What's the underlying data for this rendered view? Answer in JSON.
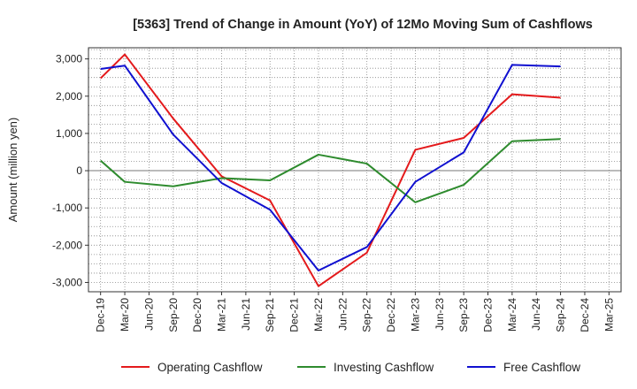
{
  "chart_data": {
    "type": "line",
    "title": "[5363]  Trend of Change in Amount (YoY) of 12Mo Moving Sum of Cashflows",
    "xlabel": "",
    "ylabel": "Amount (million yen)",
    "ylim": [
      -3250,
      3300
    ],
    "yticks": [
      -3000,
      -2000,
      -1000,
      0,
      1000,
      2000,
      3000
    ],
    "ytick_labels": [
      "-3,000",
      "-2,000",
      "-1,000",
      "0",
      "1,000",
      "2,000",
      "3,000"
    ],
    "categories": [
      "Dec-19",
      "Mar-20",
      "Jun-20",
      "Sep-20",
      "Dec-20",
      "Mar-21",
      "Jun-21",
      "Sep-21",
      "Dec-21",
      "Mar-22",
      "Jun-22",
      "Sep-22",
      "Dec-22",
      "Mar-23",
      "Jun-23",
      "Sep-23",
      "Dec-23",
      "Mar-24",
      "Jun-24",
      "Sep-24",
      "Dec-24",
      "Mar-25"
    ],
    "grid": true,
    "legend_position": "bottom",
    "series": [
      {
        "name": "Operating Cashflow",
        "color": "#e41a1c",
        "values": [
          2480,
          3120,
          null,
          1400,
          null,
          -150,
          null,
          -800,
          null,
          -3100,
          null,
          -2200,
          null,
          560,
          null,
          880,
          null,
          2050,
          null,
          1960,
          null,
          null
        ]
      },
      {
        "name": "Investing Cashflow",
        "color": "#2e8b2e",
        "values": [
          270,
          -300,
          null,
          -420,
          null,
          -200,
          null,
          -260,
          null,
          430,
          null,
          190,
          null,
          -850,
          null,
          -380,
          null,
          790,
          null,
          850,
          null,
          null
        ]
      },
      {
        "name": "Free Cashflow",
        "color": "#1010d0",
        "values": [
          2730,
          2820,
          null,
          970,
          null,
          -330,
          null,
          -1050,
          null,
          -2680,
          null,
          -2050,
          null,
          -300,
          null,
          490,
          null,
          2840,
          null,
          2800,
          null,
          null
        ]
      }
    ]
  }
}
